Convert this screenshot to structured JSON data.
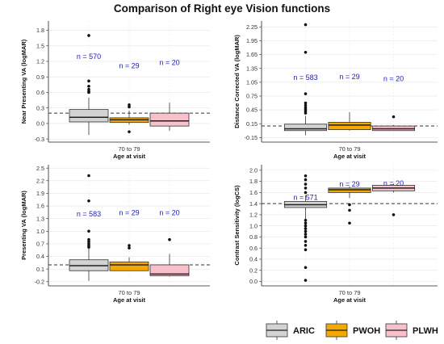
{
  "figure_title": "Comparison of Right eye Vision functions",
  "colors": {
    "ARIC": "#d3d3d3",
    "PWOH": "#f5a800",
    "PLWH": "#f7c0cb",
    "n_label": "#2020c8",
    "outlier": "#111111",
    "ref_line": "#333333",
    "grid": "#e6e6e6"
  },
  "legend": {
    "items": [
      "ARIC",
      "PWOH",
      "PLWH"
    ],
    "placement": "bottom-right"
  },
  "chart_data": [
    {
      "type": "box",
      "xlabel": "Age at visit",
      "x_tick": "70 to 79",
      "ylabel": "Near Presenting VA (logMAR)",
      "ylim": [
        -0.36,
        1.98
      ],
      "yticks": [
        "-0.3",
        "0.0",
        "0.3",
        "0.6",
        "0.9",
        "1.2",
        "1.5",
        "1.8"
      ],
      "yticks_values": [
        -0.3,
        0.0,
        0.3,
        0.6,
        0.9,
        1.2,
        1.5,
        1.8
      ],
      "reference_line": 0.2,
      "series": [
        {
          "name": "ARIC",
          "n_label": "n = 570",
          "n_at": 1.25,
          "min": -0.22,
          "q1": 0.03,
          "median": 0.12,
          "q3": 0.27,
          "max": 0.5,
          "outliers": [
            0.6,
            0.62,
            0.66,
            0.72,
            0.82,
            1.7
          ]
        },
        {
          "name": "PWOH",
          "n_label": "n = 29",
          "n_at": 1.07,
          "min": -0.02,
          "q1": 0.02,
          "median": 0.07,
          "q3": 0.11,
          "max": 0.25,
          "outliers": [
            -0.16,
            0.32,
            0.36
          ]
        },
        {
          "name": "PLWH",
          "n_label": "n = 20",
          "n_at": 1.13,
          "min": -0.14,
          "q1": -0.05,
          "median": 0.05,
          "q3": 0.2,
          "max": 0.4,
          "outliers": []
        }
      ]
    },
    {
      "type": "box",
      "xlabel": "Age at visit",
      "x_tick": "70 to 79",
      "ylabel": "Distance Corrected VA (logMAR)",
      "ylim": [
        -0.25,
        2.38
      ],
      "yticks": [
        "-0.15",
        "0.15",
        "0.45",
        "0.75",
        "1.05",
        "1.35",
        "1.65",
        "1.95",
        "2.25"
      ],
      "yticks_values": [
        -0.15,
        0.15,
        0.45,
        0.75,
        1.05,
        1.35,
        1.65,
        1.95,
        2.25
      ],
      "reference_line": 0.1,
      "series": [
        {
          "name": "ARIC",
          "n_label": "n = 583",
          "n_at": 1.1,
          "min": -0.1,
          "q1": 0.0,
          "median": 0.04,
          "q3": 0.14,
          "max": 0.32,
          "outliers": [
            0.38,
            0.42,
            0.46,
            0.5,
            0.55,
            0.6,
            0.8,
            1.7,
            2.3
          ]
        },
        {
          "name": "PWOH",
          "n_label": "n = 29",
          "n_at": 1.12,
          "min": 0.0,
          "q1": 0.02,
          "median": 0.12,
          "q3": 0.18,
          "max": 0.4,
          "outliers": []
        },
        {
          "name": "PLWH",
          "n_label": "n = 20",
          "n_at": 1.07,
          "min": 0.0,
          "q1": 0.0,
          "median": 0.04,
          "q3": 0.1,
          "max": 0.12,
          "outliers": [
            0.3
          ]
        }
      ]
    },
    {
      "type": "box",
      "xlabel": "Age at visit",
      "x_tick": "70 to 79",
      "ylabel": "Presenting VA (logMAR)",
      "ylim": [
        -0.3,
        2.58
      ],
      "yticks": [
        "-0.2",
        "0.1",
        "0.4",
        "0.7",
        "1.0",
        "1.3",
        "1.6",
        "1.9",
        "2.2",
        "2.5"
      ],
      "yticks_values": [
        -0.2,
        0.1,
        0.4,
        0.7,
        1.0,
        1.3,
        1.6,
        1.9,
        2.2,
        2.5
      ],
      "reference_line": 0.2,
      "series": [
        {
          "name": "ARIC",
          "n_label": "n = 583",
          "n_at": 1.35,
          "min": -0.18,
          "q1": 0.06,
          "median": 0.18,
          "q3": 0.32,
          "max": 0.6,
          "outliers": [
            0.62,
            0.66,
            0.7,
            0.75,
            0.8,
            1.0,
            1.72,
            2.32
          ]
        },
        {
          "name": "PWOH",
          "n_label": "n = 29",
          "n_at": 1.38,
          "min": 0.06,
          "q1": 0.06,
          "median": 0.2,
          "q3": 0.27,
          "max": 0.38,
          "outliers": [
            0.6,
            0.66
          ]
        },
        {
          "name": "PLWH",
          "n_label": "n = 20",
          "n_at": 1.38,
          "min": -0.08,
          "q1": -0.06,
          "median": -0.02,
          "q3": 0.2,
          "max": 0.46,
          "outliers": [
            0.8
          ]
        }
      ]
    },
    {
      "type": "box",
      "xlabel": "Age at visit",
      "x_tick": "70 to 79",
      "ylabel": "Contrast Sensitivity (logCS)",
      "ylim": [
        -0.08,
        2.1
      ],
      "yticks": [
        "0.0",
        "0.2",
        "0.4",
        "0.6",
        "0.8",
        "1.0",
        "1.2",
        "1.4",
        "1.6",
        "1.8",
        "2.0"
      ],
      "yticks_values": [
        0.0,
        0.2,
        0.4,
        0.6,
        0.8,
        1.0,
        1.2,
        1.4,
        1.6,
        1.8,
        2.0
      ],
      "reference_line": 1.4,
      "series": [
        {
          "name": "ARIC",
          "n_label": "n = 571",
          "n_at": 1.47,
          "min": 1.12,
          "q1": 1.33,
          "median": 1.38,
          "q3": 1.44,
          "max": 1.55,
          "outliers": [
            1.1,
            1.05,
            1.0,
            0.95,
            0.9,
            0.85,
            0.8,
            0.72,
            0.65,
            0.57,
            0.25,
            0.02,
            1.6,
            1.68,
            1.75,
            1.83,
            1.9
          ]
        },
        {
          "name": "PWOH",
          "n_label": "n = 29",
          "n_at": 1.71,
          "min": 1.5,
          "q1": 1.6,
          "median": 1.65,
          "q3": 1.68,
          "max": 1.71,
          "outliers": [
            1.38,
            1.28,
            1.05
          ]
        },
        {
          "name": "PLWH",
          "n_label": "n = 20",
          "n_at": 1.72,
          "min": 1.6,
          "q1": 1.63,
          "median": 1.68,
          "q3": 1.73,
          "max": 1.76,
          "outliers": [
            1.2
          ]
        }
      ]
    }
  ]
}
